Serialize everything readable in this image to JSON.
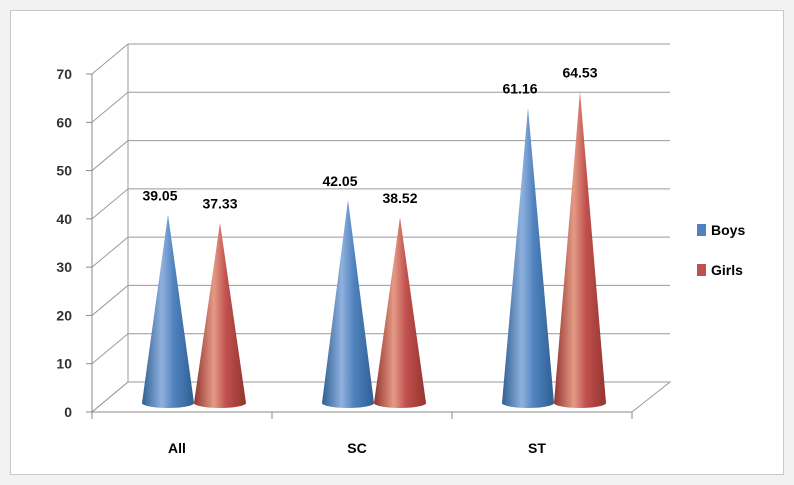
{
  "chart_data": {
    "type": "bar",
    "categories": [
      "All",
      "SC",
      "ST"
    ],
    "series": [
      {
        "name": "Boys",
        "values": [
          39.05,
          42.05,
          61.16
        ],
        "color": "#4f81bd",
        "shade": "#2f5f93",
        "light": "#8fb1de"
      },
      {
        "name": "Girls",
        "values": [
          37.33,
          38.52,
          64.53
        ],
        "color": "#c0504d",
        "shade": "#94342f",
        "light": "#e49a86"
      }
    ],
    "data_labels": [
      [
        "39.05",
        "42.05",
        "61.16"
      ],
      [
        "37.33",
        "38.52",
        "64.53"
      ]
    ],
    "yticks": [
      "0",
      "10",
      "20",
      "30",
      "40",
      "50",
      "60",
      "70"
    ],
    "ylim": [
      0,
      70
    ],
    "grid": true,
    "legend": "right",
    "title": "",
    "xlabel": "",
    "ylabel": ""
  }
}
